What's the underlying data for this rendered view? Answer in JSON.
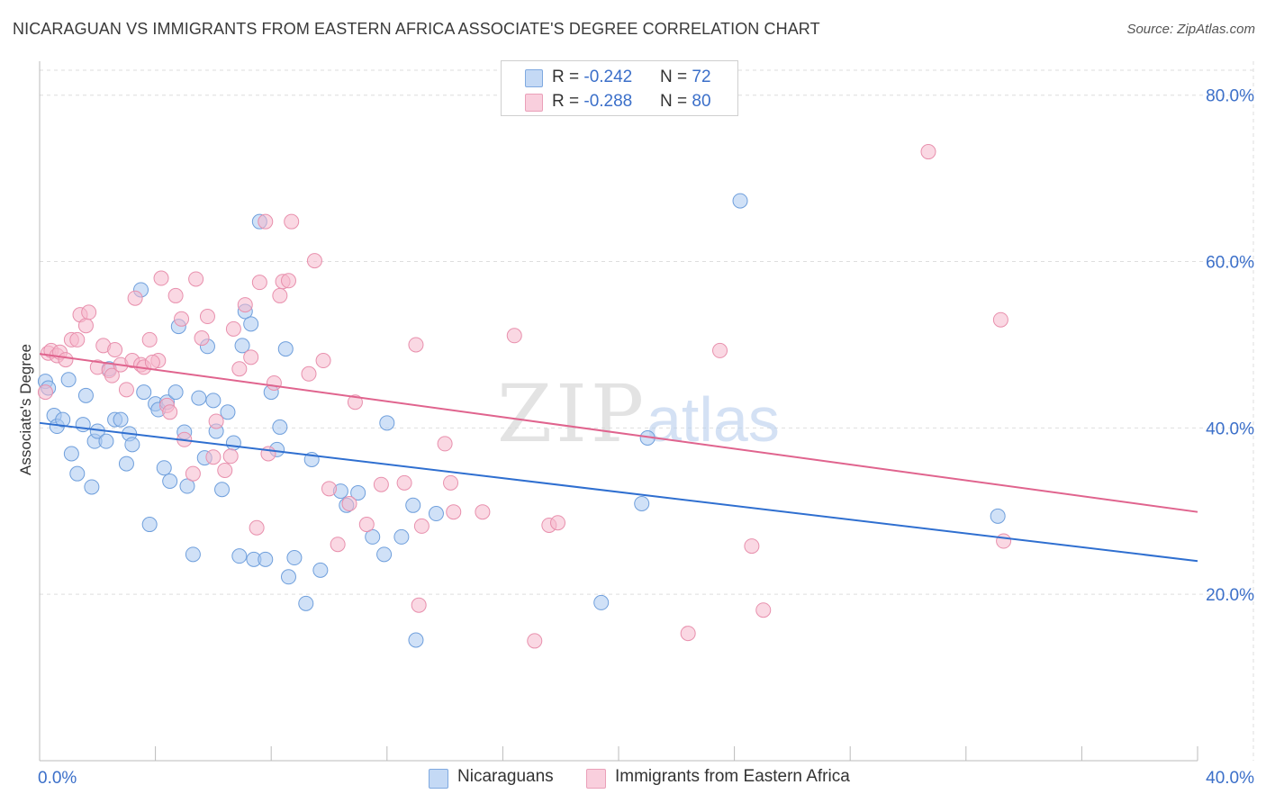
{
  "title": "NICARAGUAN VS IMMIGRANTS FROM EASTERN AFRICA ASSOCIATE'S DEGREE CORRELATION CHART",
  "source": "Source: ZipAtlas.com",
  "watermark": {
    "zip": "ZIP",
    "atlas": "atlas"
  },
  "legend_top": {
    "series1": {
      "r_label": "R = ",
      "r_value": "-0.242",
      "n_label": "N = ",
      "n_value": "72"
    },
    "series2": {
      "r_label": "R = ",
      "r_value": "-0.288",
      "n_label": "N = ",
      "n_value": "80"
    }
  },
  "colors": {
    "blue_fill": "#a9c8f0",
    "blue_stroke": "#6f9fdc",
    "blue_line": "#2f6fd0",
    "pink_fill": "#f5b8cc",
    "pink_stroke": "#e890ad",
    "pink_line": "#e0648e",
    "grid": "#dedede",
    "tick_label": "#3b6fc9"
  },
  "chart_data": {
    "type": "scatter",
    "title": "NICARAGUAN VS IMMIGRANTS FROM EASTERN AFRICA ASSOCIATE'S DEGREE CORRELATION CHART",
    "xlabel": "",
    "ylabel": "Associate's Degree",
    "xlim": [
      0,
      40
    ],
    "ylim": [
      0,
      83
    ],
    "x_tick_labels": [
      {
        "value": 0,
        "label": "0.0%"
      },
      {
        "value": 40,
        "label": "40.0%"
      }
    ],
    "y_tick_labels": [
      {
        "value": 20,
        "label": "20.0%"
      },
      {
        "value": 40,
        "label": "40.0%"
      },
      {
        "value": 60,
        "label": "60.0%"
      },
      {
        "value": 80,
        "label": "80.0%"
      }
    ],
    "x_minor_ticks": [
      0,
      4,
      8,
      12,
      16,
      20,
      24,
      28,
      32,
      36,
      40
    ],
    "grid": true,
    "legend_position": "bottom",
    "series": [
      {
        "name": "Nicaraguans",
        "color": "#a9c8f0",
        "trend": {
          "x": [
            0,
            40
          ],
          "y": [
            40.6,
            24.0
          ]
        },
        "points": [
          [
            0.2,
            45.6
          ],
          [
            0.3,
            44.8
          ],
          [
            0.5,
            41.5
          ],
          [
            0.6,
            40.2
          ],
          [
            0.8,
            41.0
          ],
          [
            1.0,
            45.8
          ],
          [
            1.1,
            36.9
          ],
          [
            1.3,
            34.5
          ],
          [
            1.5,
            40.4
          ],
          [
            1.6,
            43.9
          ],
          [
            1.8,
            32.9
          ],
          [
            1.9,
            38.4
          ],
          [
            2.0,
            39.6
          ],
          [
            2.3,
            38.4
          ],
          [
            2.4,
            47.1
          ],
          [
            2.6,
            41.0
          ],
          [
            2.8,
            41.0
          ],
          [
            3.0,
            35.7
          ],
          [
            3.1,
            39.3
          ],
          [
            3.2,
            38.0
          ],
          [
            3.5,
            56.6
          ],
          [
            3.6,
            44.3
          ],
          [
            3.8,
            28.4
          ],
          [
            4.0,
            42.9
          ],
          [
            4.1,
            42.2
          ],
          [
            4.3,
            35.2
          ],
          [
            4.4,
            43.1
          ],
          [
            4.5,
            33.6
          ],
          [
            4.7,
            44.3
          ],
          [
            4.8,
            52.2
          ],
          [
            5.0,
            39.5
          ],
          [
            5.1,
            33.0
          ],
          [
            5.3,
            24.8
          ],
          [
            5.5,
            43.6
          ],
          [
            5.7,
            36.4
          ],
          [
            5.8,
            49.8
          ],
          [
            6.0,
            43.3
          ],
          [
            6.1,
            39.6
          ],
          [
            6.3,
            32.6
          ],
          [
            6.5,
            41.9
          ],
          [
            6.7,
            38.2
          ],
          [
            6.9,
            24.6
          ],
          [
            7.0,
            49.9
          ],
          [
            7.1,
            54.0
          ],
          [
            7.3,
            52.5
          ],
          [
            7.4,
            24.2
          ],
          [
            7.6,
            64.8
          ],
          [
            7.8,
            24.2
          ],
          [
            8.0,
            44.3
          ],
          [
            8.2,
            37.4
          ],
          [
            8.3,
            40.1
          ],
          [
            8.5,
            49.5
          ],
          [
            8.6,
            22.1
          ],
          [
            8.8,
            24.4
          ],
          [
            9.2,
            18.9
          ],
          [
            9.4,
            36.2
          ],
          [
            9.7,
            22.9
          ],
          [
            10.4,
            32.4
          ],
          [
            10.6,
            30.7
          ],
          [
            11.0,
            32.2
          ],
          [
            11.5,
            26.9
          ],
          [
            11.9,
            24.8
          ],
          [
            12.0,
            40.6
          ],
          [
            12.5,
            26.9
          ],
          [
            12.9,
            30.7
          ],
          [
            13.0,
            14.5
          ],
          [
            13.7,
            29.7
          ],
          [
            19.4,
            19.0
          ],
          [
            20.8,
            30.9
          ],
          [
            21.0,
            38.8
          ],
          [
            24.2,
            67.3
          ],
          [
            33.1,
            29.4
          ]
        ]
      },
      {
        "name": "Immigrants from Eastern Africa",
        "color": "#f5b8cc",
        "trend": {
          "x": [
            0,
            40
          ],
          "y": [
            48.9,
            29.9
          ]
        },
        "points": [
          [
            0.2,
            44.3
          ],
          [
            0.3,
            49.0
          ],
          [
            0.4,
            49.3
          ],
          [
            0.6,
            48.7
          ],
          [
            0.7,
            49.1
          ],
          [
            0.9,
            48.2
          ],
          [
            1.1,
            50.6
          ],
          [
            1.3,
            50.6
          ],
          [
            1.4,
            53.6
          ],
          [
            1.6,
            52.3
          ],
          [
            1.7,
            53.9
          ],
          [
            2.0,
            47.3
          ],
          [
            2.2,
            49.9
          ],
          [
            2.4,
            46.9
          ],
          [
            2.5,
            46.3
          ],
          [
            2.6,
            49.4
          ],
          [
            2.8,
            47.6
          ],
          [
            3.0,
            44.6
          ],
          [
            3.2,
            48.1
          ],
          [
            3.3,
            55.6
          ],
          [
            3.5,
            47.6
          ],
          [
            3.6,
            47.3
          ],
          [
            3.8,
            50.6
          ],
          [
            4.1,
            48.1
          ],
          [
            4.2,
            58.0
          ],
          [
            4.4,
            42.7
          ],
          [
            4.5,
            41.9
          ],
          [
            4.7,
            55.9
          ],
          [
            4.9,
            53.1
          ],
          [
            5.0,
            38.6
          ],
          [
            5.3,
            34.5
          ],
          [
            5.4,
            57.9
          ],
          [
            5.6,
            50.8
          ],
          [
            5.8,
            53.4
          ],
          [
            6.0,
            36.5
          ],
          [
            6.1,
            40.8
          ],
          [
            6.4,
            34.9
          ],
          [
            6.6,
            36.6
          ],
          [
            6.7,
            51.9
          ],
          [
            6.9,
            47.1
          ],
          [
            7.1,
            54.8
          ],
          [
            7.3,
            48.5
          ],
          [
            7.5,
            28.0
          ],
          [
            7.6,
            57.5
          ],
          [
            7.8,
            64.8
          ],
          [
            7.9,
            36.9
          ],
          [
            8.1,
            45.4
          ],
          [
            8.3,
            55.9
          ],
          [
            8.4,
            57.6
          ],
          [
            8.6,
            57.7
          ],
          [
            8.7,
            64.8
          ],
          [
            9.3,
            46.5
          ],
          [
            9.5,
            60.1
          ],
          [
            9.8,
            48.1
          ],
          [
            10.0,
            32.7
          ],
          [
            10.3,
            26.0
          ],
          [
            10.7,
            30.9
          ],
          [
            10.9,
            43.1
          ],
          [
            11.3,
            28.4
          ],
          [
            11.8,
            33.2
          ],
          [
            12.6,
            33.4
          ],
          [
            13.0,
            50.0
          ],
          [
            13.1,
            18.7
          ],
          [
            13.2,
            28.2
          ],
          [
            14.0,
            38.1
          ],
          [
            14.2,
            33.4
          ],
          [
            14.3,
            29.9
          ],
          [
            15.3,
            29.9
          ],
          [
            16.4,
            51.1
          ],
          [
            17.1,
            14.4
          ],
          [
            17.6,
            28.3
          ],
          [
            17.9,
            28.6
          ],
          [
            22.4,
            15.3
          ],
          [
            23.5,
            49.3
          ],
          [
            24.6,
            25.8
          ],
          [
            25.0,
            18.1
          ],
          [
            30.7,
            73.2
          ],
          [
            33.2,
            53.0
          ],
          [
            33.3,
            26.4
          ],
          [
            3.9,
            47.9
          ]
        ]
      }
    ]
  },
  "legend_bottom": [
    {
      "label": "Nicaraguans",
      "color": "#a9c8f0"
    },
    {
      "label": "Immigrants from Eastern Africa",
      "color": "#f5b8cc"
    }
  ]
}
